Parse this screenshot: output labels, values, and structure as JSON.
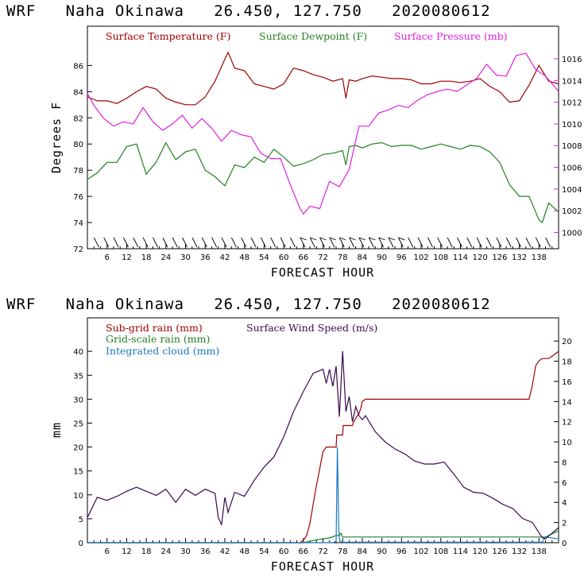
{
  "chart_data": [
    {
      "type": "line",
      "title": "WRF   Naha Okinawa   26.450, 127.750   2020080612",
      "xlabel": "FORECAST HOUR",
      "ylabel": "Degrees F",
      "xlim": [
        0,
        144
      ],
      "ylim": [
        72,
        89
      ],
      "ylim_right": [
        998.5,
        1019
      ],
      "x_ticks": [
        6,
        12,
        18,
        24,
        30,
        36,
        42,
        48,
        54,
        60,
        66,
        72,
        78,
        84,
        90,
        96,
        102,
        108,
        114,
        120,
        126,
        132,
        138
      ],
      "x_tick_labels": [
        "6",
        "12",
        "18",
        "24",
        "30",
        "36",
        "42",
        "48",
        "54",
        "60",
        "66",
        "72",
        "78",
        "84",
        "90",
        "96",
        "102",
        "108",
        "114",
        "120",
        "126",
        "132",
        "138"
      ],
      "y_ticks": [
        72,
        74,
        76,
        78,
        80,
        82,
        84,
        86
      ],
      "y_tick_labels": [
        "72",
        "74",
        "76",
        "78",
        "80",
        "82",
        "84",
        "86"
      ],
      "y_right_ticks": [
        1000,
        1002,
        1004,
        1006,
        1008,
        1010,
        1012,
        1014,
        1016
      ],
      "y_right_tick_labels": [
        "1000",
        "1002",
        "1004",
        "1006",
        "1008",
        "1010",
        "1012",
        "1014",
        "1016"
      ],
      "series": [
        {
          "name": "Surface Temperature (F)",
          "color": "#a00000",
          "axis": "left",
          "x": [
            0,
            3,
            6,
            9,
            12,
            15,
            18,
            21,
            24,
            27,
            30,
            33,
            36,
            39,
            42,
            43,
            45,
            48,
            51,
            54,
            57,
            60,
            63,
            66,
            69,
            72,
            75,
            78,
            79,
            80,
            82,
            84,
            87,
            90,
            93,
            96,
            99,
            102,
            105,
            108,
            111,
            114,
            117,
            120,
            123,
            126,
            129,
            132,
            135,
            138,
            141,
            144
          ],
          "values": [
            83.6,
            83.3,
            83.3,
            83.1,
            83.5,
            84.0,
            84.4,
            84.2,
            83.5,
            83.2,
            83.0,
            83.0,
            83.6,
            84.8,
            86.5,
            87.0,
            85.8,
            85.6,
            84.6,
            84.4,
            84.2,
            84.6,
            85.8,
            85.6,
            85.3,
            85.1,
            84.8,
            85.0,
            83.5,
            84.9,
            84.8,
            85.0,
            85.2,
            85.1,
            85.0,
            85.0,
            84.9,
            84.6,
            84.6,
            84.8,
            84.8,
            84.7,
            84.8,
            85.0,
            84.4,
            84.0,
            83.2,
            83.3,
            84.5,
            86.0,
            84.8,
            84.6
          ]
        },
        {
          "name": "Surface Dewpoint (F)",
          "color": "#208020",
          "axis": "left",
          "x": [
            0,
            3,
            6,
            9,
            12,
            15,
            18,
            21,
            24,
            27,
            30,
            33,
            36,
            39,
            42,
            45,
            48,
            51,
            54,
            57,
            60,
            63,
            66,
            69,
            72,
            75,
            78,
            79,
            80,
            82,
            84,
            87,
            90,
            93,
            96,
            99,
            102,
            105,
            108,
            111,
            114,
            117,
            120,
            123,
            126,
            129,
            132,
            135,
            138,
            139,
            141,
            144
          ],
          "values": [
            77.3,
            77.8,
            78.6,
            78.6,
            79.8,
            80.0,
            77.7,
            78.6,
            80.1,
            78.8,
            79.4,
            79.6,
            78.0,
            77.5,
            76.8,
            78.4,
            78.2,
            79.0,
            78.6,
            79.6,
            79.0,
            78.3,
            78.5,
            78.8,
            79.2,
            79.3,
            79.5,
            78.4,
            79.8,
            79.9,
            79.7,
            80.0,
            80.1,
            79.8,
            79.9,
            79.9,
            79.6,
            79.8,
            80.0,
            79.8,
            79.6,
            79.9,
            79.8,
            79.4,
            78.6,
            76.9,
            76.0,
            76.0,
            74.2,
            74.0,
            75.5,
            74.8
          ]
        },
        {
          "name": "Surface Pressure (mb)",
          "color": "#e020e0",
          "axis": "right",
          "x": [
            0,
            2,
            5,
            8,
            11,
            14,
            17,
            20,
            23,
            26,
            29,
            32,
            35,
            38,
            41,
            44,
            47,
            50,
            53,
            56,
            59,
            62,
            65,
            66,
            68,
            71,
            74,
            77,
            80,
            83,
            86,
            89,
            92,
            95,
            98,
            101,
            104,
            107,
            110,
            113,
            116,
            119,
            122,
            125,
            128,
            131,
            134,
            137,
            140,
            144
          ],
          "values": [
            1012.8,
            1011.7,
            1010.5,
            1009.8,
            1010.2,
            1010.0,
            1011.5,
            1010.2,
            1009.4,
            1010.0,
            1010.8,
            1009.6,
            1010.5,
            1009.6,
            1008.4,
            1009.4,
            1009.0,
            1008.8,
            1007.3,
            1006.8,
            1006.8,
            1004.4,
            1002.2,
            1001.7,
            1002.4,
            1002.2,
            1004.7,
            1004.2,
            1005.8,
            1009.8,
            1009.8,
            1011.0,
            1011.3,
            1011.7,
            1011.5,
            1012.2,
            1012.7,
            1013.0,
            1013.2,
            1013.0,
            1013.6,
            1014.2,
            1015.5,
            1014.5,
            1014.4,
            1016.3,
            1016.5,
            1015.0,
            1014.4,
            1013.0
          ]
        }
      ],
      "legend": [
        "Surface Temperature (F)",
        "Surface Dewpoint (F)",
        "Surface Pressure (mb)"
      ]
    },
    {
      "type": "line",
      "title": "WRF   Naha Okinawa   26.450, 127.750   2020080612",
      "xlabel": "FORECAST HOUR",
      "ylabel": "mm",
      "xlim": [
        0,
        144
      ],
      "ylim": [
        0,
        47
      ],
      "ylim_right": [
        0,
        22.3
      ],
      "x_ticks": [
        6,
        12,
        18,
        24,
        30,
        36,
        42,
        48,
        54,
        60,
        66,
        72,
        78,
        84,
        90,
        96,
        102,
        108,
        114,
        120,
        126,
        132,
        138
      ],
      "x_tick_labels": [
        "6",
        "12",
        "18",
        "24",
        "30",
        "36",
        "42",
        "48",
        "54",
        "60",
        "66",
        "72",
        "78",
        "84",
        "90",
        "96",
        "102",
        "108",
        "114",
        "120",
        "126",
        "132",
        "138"
      ],
      "y_ticks": [
        0,
        5,
        10,
        15,
        20,
        25,
        30,
        35,
        40
      ],
      "y_tick_labels": [
        "0",
        "5",
        "10",
        "15",
        "20",
        "25",
        "30",
        "35",
        "40"
      ],
      "y_right_ticks": [
        0,
        2,
        4,
        6,
        8,
        10,
        12,
        14,
        16,
        18,
        20
      ],
      "y_right_tick_labels": [
        "0",
        "2",
        "4",
        "6",
        "8",
        "10",
        "12",
        "14",
        "16",
        "18",
        "20"
      ],
      "series": [
        {
          "name": "Sub-grid rain (mm)",
          "color": "#a00000",
          "axis": "left",
          "x": [
            0,
            65,
            66,
            67,
            68,
            69,
            70,
            71,
            72,
            73,
            76,
            76.2,
            78,
            78.2,
            81,
            81.2,
            82,
            83,
            83.5,
            84,
            85,
            135,
            136,
            137,
            138,
            139,
            141,
            142,
            144
          ],
          "values": [
            0,
            0,
            0.5,
            1.5,
            4,
            8,
            12,
            15.5,
            19,
            20,
            20,
            22.5,
            22.5,
            24.5,
            24.5,
            25,
            26,
            27,
            28,
            29.5,
            30,
            30,
            33,
            37,
            38,
            38.5,
            38.5,
            39,
            40
          ]
        },
        {
          "name": "Grid-scale rain (mm)",
          "color": "#208020",
          "axis": "left",
          "x": [
            0,
            66,
            68,
            70,
            72,
            74,
            76,
            77,
            77.5,
            78,
            80,
            100,
            120,
            140,
            144
          ],
          "values": [
            0,
            0,
            0.3,
            0.6,
            0.8,
            1.0,
            1.5,
            1.5,
            2.0,
            1.2,
            1.2,
            1.2,
            1.2,
            1.2,
            2.5
          ]
        },
        {
          "name": "Integrated cloud (mm)",
          "color": "#1878c0",
          "axis": "left",
          "x": [
            0,
            66,
            75,
            76,
            76.4,
            76.6,
            76.8,
            77,
            77.2,
            78,
            80,
            100,
            120,
            139,
            140,
            144
          ],
          "values": [
            0,
            0,
            0,
            0.3,
            20,
            12,
            3,
            1,
            0.3,
            0.1,
            0.1,
            0.1,
            0.1,
            0.1,
            1.2,
            0.8
          ]
        },
        {
          "name": "Surface Wind Speed (m/s)",
          "color": "#3a0a50",
          "axis": "right",
          "x": [
            0,
            3,
            6,
            9,
            12,
            15,
            18,
            21,
            24,
            27,
            30,
            33,
            36,
            39,
            40,
            41,
            42,
            43,
            45,
            48,
            51,
            54,
            57,
            60,
            63,
            66,
            69,
            72,
            73,
            74,
            75,
            76,
            77,
            78,
            79,
            80,
            81,
            82,
            83,
            84,
            85,
            88,
            91,
            94,
            97,
            100,
            103,
            106,
            109,
            112,
            115,
            118,
            121,
            124,
            127,
            130,
            133,
            136,
            139,
            140,
            144
          ],
          "values": [
            2.5,
            4.5,
            4.2,
            4.6,
            5.1,
            5.5,
            5.1,
            4.7,
            5.3,
            4.0,
            5.3,
            4.7,
            5.3,
            4.9,
            2.5,
            1.8,
            4.5,
            3.0,
            5.0,
            4.6,
            6.2,
            7.5,
            8.5,
            10.5,
            13.0,
            15.0,
            16.8,
            17.2,
            15.8,
            17.2,
            15.5,
            17.5,
            12.5,
            19.0,
            13.0,
            14.5,
            12.0,
            13.5,
            12.6,
            12.2,
            12.6,
            11.0,
            10.0,
            9.3,
            8.8,
            8.1,
            7.8,
            7.8,
            8.0,
            6.8,
            5.5,
            5.0,
            4.9,
            4.4,
            3.8,
            3.4,
            2.4,
            2.0,
            0.5,
            0.4,
            1.5
          ]
        }
      ],
      "legend": [
        "Sub-grid rain (mm)",
        "Surface Wind Speed (m/s)",
        "Grid-scale rain (mm)",
        "Integrated cloud (mm)"
      ]
    }
  ]
}
